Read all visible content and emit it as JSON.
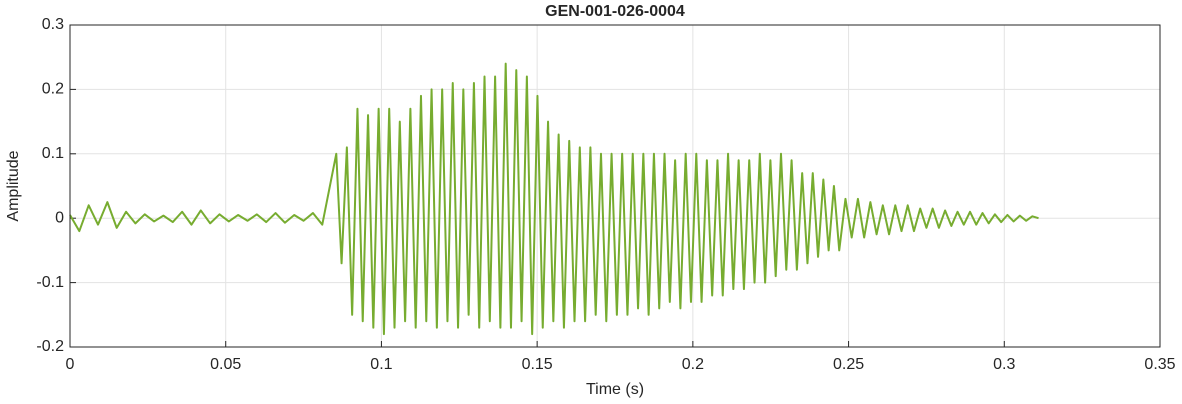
{
  "chart_data": {
    "type": "line",
    "title": "GEN-001-026-0004",
    "xlabel": "Time (s)",
    "ylabel": "Amplitude",
    "xlim": [
      0,
      0.35
    ],
    "xticks": [
      0,
      0.05,
      0.1,
      0.15,
      0.2,
      0.25,
      0.3,
      0.35
    ],
    "ylim": [
      -0.2,
      0.3
    ],
    "yticks": [
      -0.2,
      -0.1,
      0,
      0.1,
      0.2,
      0.3
    ],
    "grid": true,
    "series": [
      {
        "color": "#77ac30",
        "x": [
          0,
          0.003,
          0.006,
          0.009,
          0.012,
          0.015,
          0.018,
          0.021,
          0.024,
          0.027,
          0.03,
          0.033,
          0.036,
          0.039,
          0.042,
          0.045,
          0.048,
          0.051,
          0.054,
          0.057,
          0.06,
          0.063,
          0.066,
          0.069,
          0.072,
          0.075,
          0.078,
          0.081,
          0.0855,
          0.0872,
          0.0889,
          0.0906,
          0.0923,
          0.094,
          0.0957,
          0.0974,
          0.0991,
          0.1008,
          0.1025,
          0.1042,
          0.1059,
          0.1076,
          0.1093,
          0.111,
          0.1127,
          0.1144,
          0.1161,
          0.1178,
          0.1195,
          0.1212,
          0.1229,
          0.1246,
          0.1263,
          0.128,
          0.1297,
          0.1314,
          0.1331,
          0.1348,
          0.1365,
          0.1382,
          0.1399,
          0.1416,
          0.1433,
          0.145,
          0.1467,
          0.1484,
          0.1501,
          0.1518,
          0.1535,
          0.1552,
          0.1569,
          0.1586,
          0.1603,
          0.162,
          0.1637,
          0.1654,
          0.1671,
          0.1688,
          0.1705,
          0.1722,
          0.1739,
          0.1756,
          0.1773,
          0.179,
          0.1807,
          0.1824,
          0.1841,
          0.1858,
          0.1875,
          0.1892,
          0.1909,
          0.1926,
          0.1943,
          0.196,
          0.1977,
          0.1994,
          0.2011,
          0.2028,
          0.2045,
          0.2062,
          0.2079,
          0.2096,
          0.2113,
          0.213,
          0.2147,
          0.2164,
          0.2181,
          0.2198,
          0.2215,
          0.2232,
          0.2249,
          0.2266,
          0.2283,
          0.23,
          0.2317,
          0.2334,
          0.2351,
          0.2368,
          0.2385,
          0.2402,
          0.2419,
          0.2436,
          0.2453,
          0.247,
          0.249,
          0.251,
          0.253,
          0.255,
          0.257,
          0.259,
          0.261,
          0.263,
          0.265,
          0.267,
          0.269,
          0.271,
          0.273,
          0.275,
          0.277,
          0.279,
          0.281,
          0.283,
          0.285,
          0.287,
          0.289,
          0.291,
          0.293,
          0.295,
          0.297,
          0.299,
          0.301,
          0.303,
          0.305,
          0.307,
          0.309,
          0.311
        ],
        "values": [
          0.005,
          -0.02,
          0.02,
          -0.01,
          0.025,
          -0.015,
          0.01,
          -0.008,
          0.006,
          -0.005,
          0.004,
          -0.006,
          0.01,
          -0.01,
          0.012,
          -0.008,
          0.006,
          -0.005,
          0.005,
          -0.004,
          0.006,
          -0.006,
          0.008,
          -0.007,
          0.005,
          -0.004,
          0.008,
          -0.01,
          0.1,
          -0.07,
          0.11,
          -0.15,
          0.17,
          -0.16,
          0.16,
          -0.17,
          0.17,
          -0.18,
          0.17,
          -0.17,
          0.15,
          -0.16,
          0.17,
          -0.17,
          0.19,
          -0.16,
          0.2,
          -0.17,
          0.2,
          -0.16,
          0.21,
          -0.17,
          0.2,
          -0.15,
          0.21,
          -0.17,
          0.22,
          -0.16,
          0.22,
          -0.17,
          0.24,
          -0.17,
          0.23,
          -0.16,
          0.22,
          -0.18,
          0.19,
          -0.17,
          0.15,
          -0.16,
          0.13,
          -0.17,
          0.12,
          -0.16,
          0.11,
          -0.16,
          0.11,
          -0.15,
          0.1,
          -0.16,
          0.1,
          -0.15,
          0.1,
          -0.15,
          0.1,
          -0.14,
          0.1,
          -0.15,
          0.1,
          -0.14,
          0.1,
          -0.13,
          0.09,
          -0.14,
          0.1,
          -0.13,
          0.1,
          -0.13,
          0.09,
          -0.12,
          0.09,
          -0.12,
          0.1,
          -0.11,
          0.09,
          -0.11,
          0.09,
          -0.1,
          0.1,
          -0.1,
          0.09,
          -0.09,
          0.1,
          -0.08,
          0.09,
          -0.08,
          0.07,
          -0.07,
          0.07,
          -0.06,
          0.06,
          -0.05,
          0.05,
          -0.05,
          0.03,
          -0.03,
          0.03,
          -0.03,
          0.025,
          -0.025,
          0.02,
          -0.025,
          0.02,
          -0.02,
          0.02,
          -0.02,
          0.015,
          -0.015,
          0.015,
          -0.015,
          0.012,
          -0.012,
          0.01,
          -0.01,
          0.01,
          -0.01,
          0.008,
          -0.008,
          0.006,
          -0.006,
          0.005,
          -0.005,
          0.004,
          -0.004,
          0.003,
          0
        ]
      }
    ]
  }
}
